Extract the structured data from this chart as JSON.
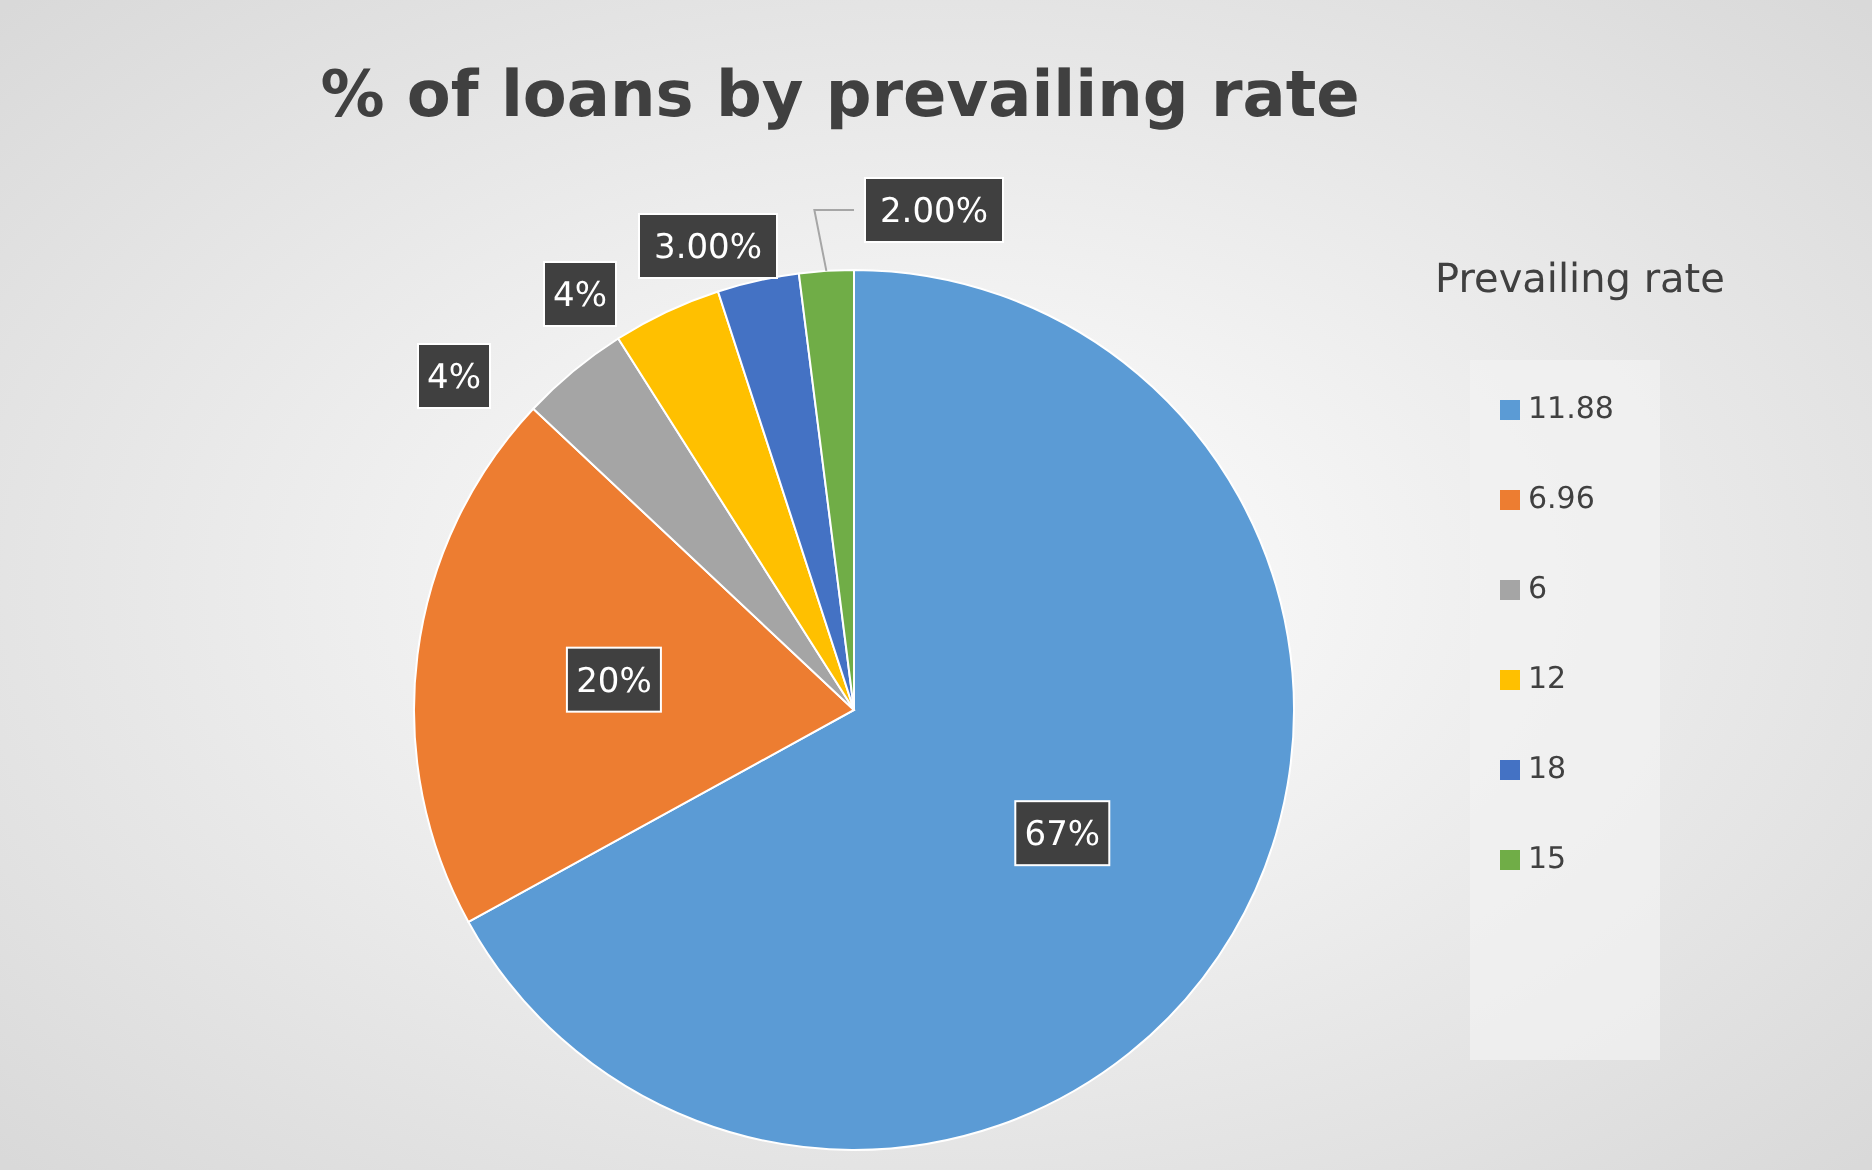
{
  "chart_data": {
    "type": "pie",
    "title": "% of loans by prevailing rate",
    "legend_title": "Prevailing rate",
    "legend": "right",
    "categories": [
      "11.88",
      "6.96",
      "6",
      "12",
      "18",
      "15"
    ],
    "values": [
      67,
      20,
      4,
      4,
      3,
      2
    ],
    "value_labels": [
      "67%",
      "20%",
      "4%",
      "4%",
      "3.00%",
      "2.00%"
    ],
    "colors": [
      "#5b9bd5",
      "#ed7d31",
      "#a5a5a5",
      "#ffc000",
      "#4472c4",
      "#70ad47"
    ]
  }
}
